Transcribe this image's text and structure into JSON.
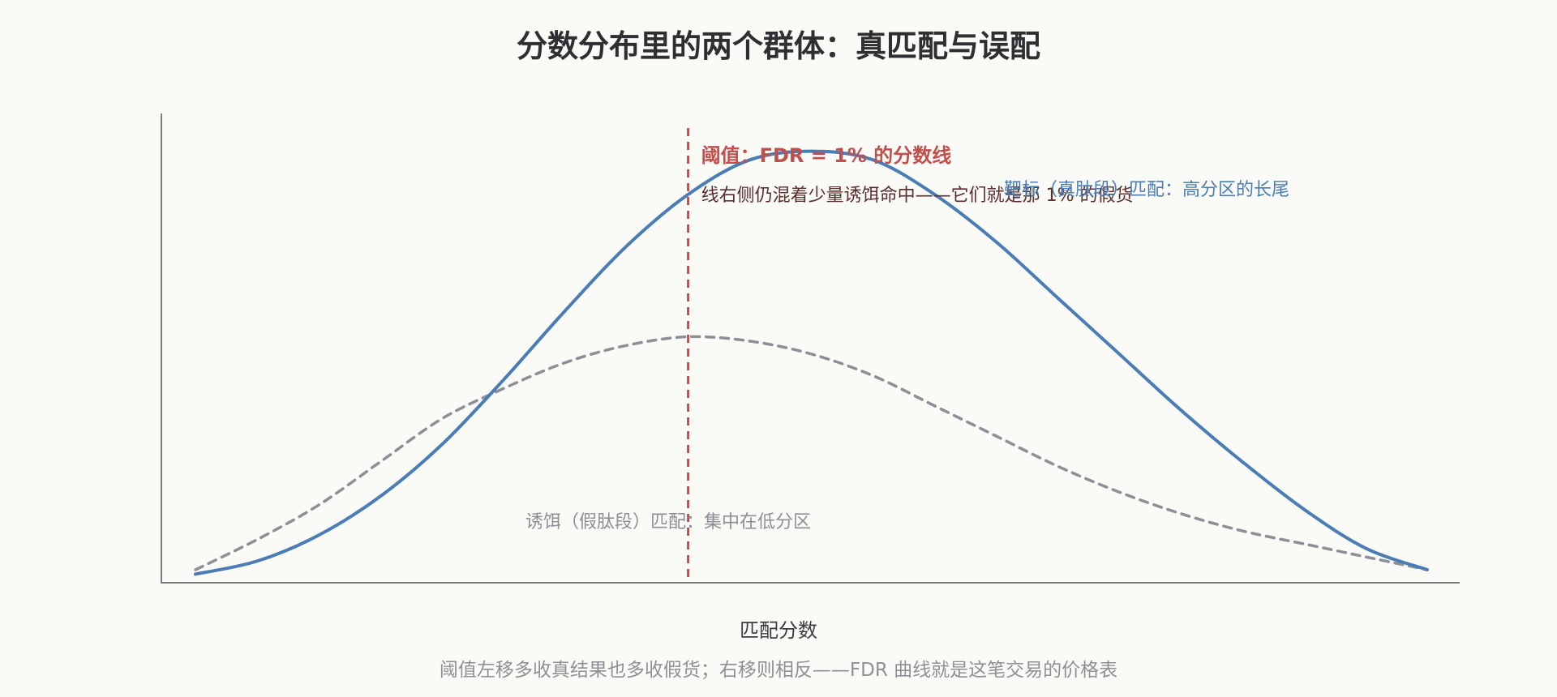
{
  "chart_data": {
    "type": "line",
    "title": "分数分布里的两个群体：真匹配与误配",
    "xlabel": "匹配分数",
    "ylabel": "",
    "caption": "阈值左移多收真结果也多收假货；右移则相反——FDR 曲线就是这笔交易的价格表",
    "grid": false,
    "x": [
      0.0,
      0.05,
      0.1,
      0.15,
      0.2,
      0.25,
      0.3,
      0.35,
      0.4,
      0.45,
      0.5,
      0.55,
      0.6,
      0.65,
      0.7,
      0.75,
      0.8,
      0.85,
      0.9,
      0.95,
      1.0
    ],
    "series": [
      {
        "name": "靶标（真肽段）匹配：高分区的长尾",
        "color": "#4a7db5",
        "style": "solid",
        "values": [
          0.02,
          0.05,
          0.11,
          0.2,
          0.32,
          0.47,
          0.63,
          0.78,
          0.9,
          0.98,
          1.0,
          0.98,
          0.9,
          0.79,
          0.66,
          0.53,
          0.4,
          0.28,
          0.17,
          0.08,
          0.03
        ]
      },
      {
        "name": "诱饵（假肽段）匹配：集中在低分区",
        "color": "#8d8f97",
        "style": "dashed",
        "values": [
          0.03,
          0.1,
          0.18,
          0.28,
          0.38,
          0.45,
          0.51,
          0.55,
          0.57,
          0.56,
          0.53,
          0.48,
          0.41,
          0.34,
          0.27,
          0.21,
          0.16,
          0.12,
          0.09,
          0.06,
          0.03
        ]
      }
    ],
    "xlim": [
      0,
      1
    ],
    "ylim": [
      0,
      1.05
    ],
    "threshold": {
      "x": 0.4,
      "color": "#c0504d",
      "label": "阈值：FDR = 1% 的分数线",
      "note": "线右侧仍混着少量诱饵命中——它们就是那 1% 的假货"
    }
  }
}
